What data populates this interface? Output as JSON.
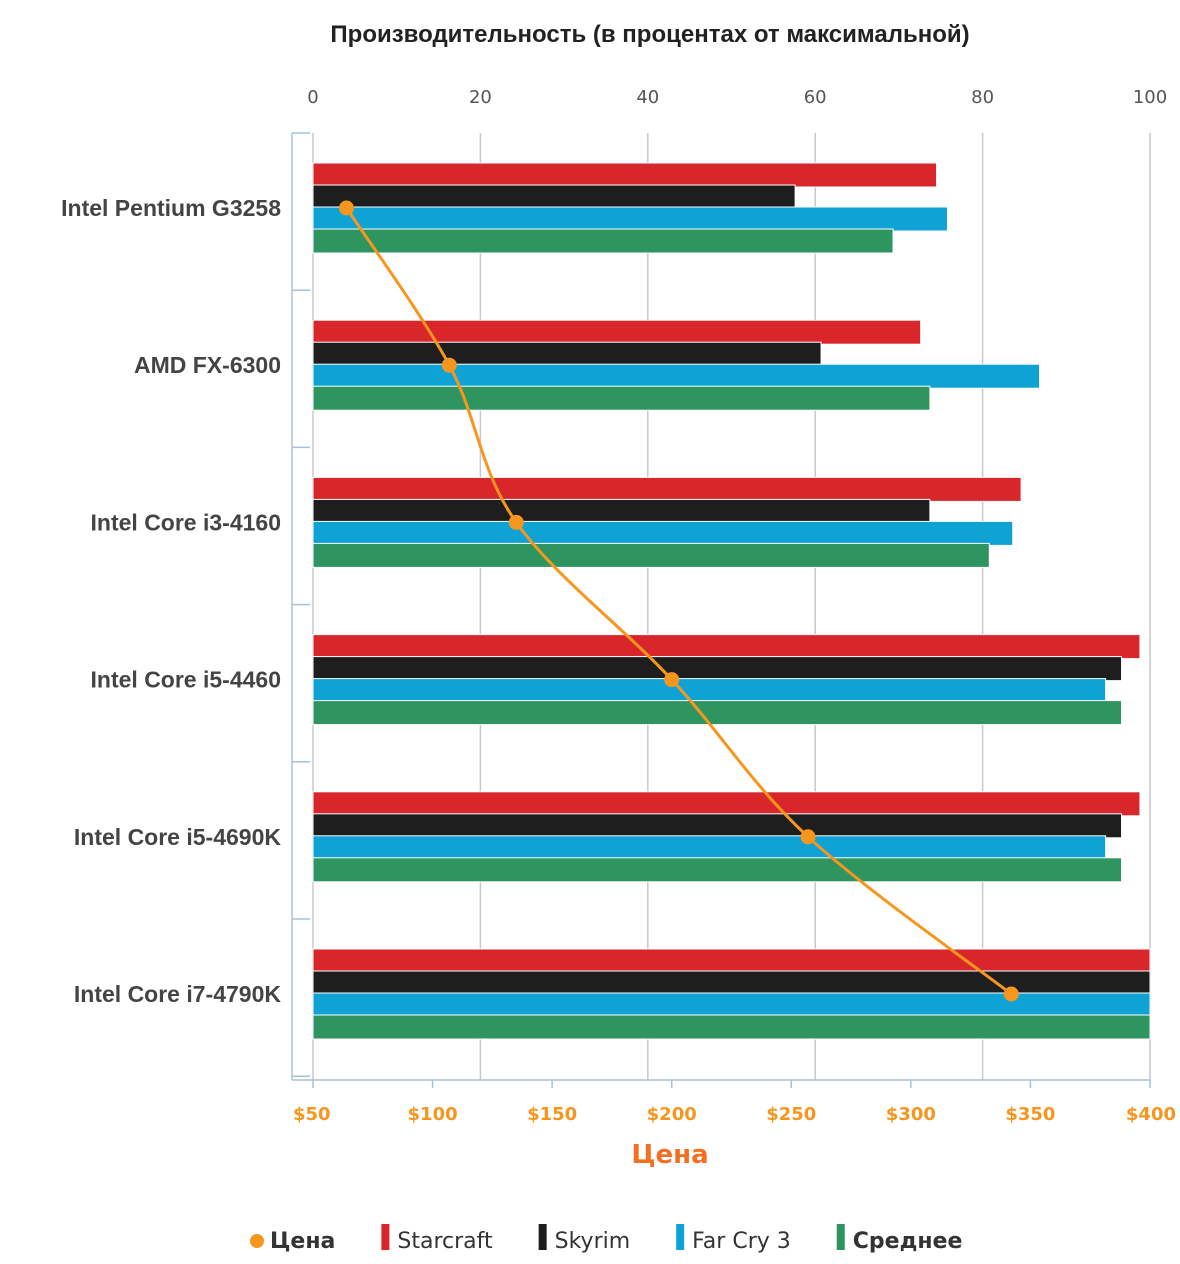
{
  "chart_data": {
    "type": "bar",
    "orientation": "horizontal",
    "title": "Производительность (в процентах от максимальной)",
    "categories": [
      "Intel Pentium G3258",
      "AMD FX-6300",
      "Intel Core i3-4160",
      "Intel Core i5-4460",
      "Intel Core i5-4690K",
      "Intel Core i7-4790K"
    ],
    "series": [
      {
        "name": "Starcraft",
        "color": "#d9262a",
        "values": [
          74.5,
          72.6,
          84.6,
          98.8,
          98.8,
          100
        ]
      },
      {
        "name": "Skyrim",
        "color": "#1e1e1e",
        "values": [
          57.6,
          60.7,
          73.7,
          96.6,
          96.6,
          100
        ]
      },
      {
        "name": "Far Cry 3",
        "color": "#0ea3d4",
        "values": [
          75.8,
          86.8,
          83.6,
          94.7,
          94.7,
          100
        ]
      },
      {
        "name": "Среднее",
        "color": "#2e9560",
        "values": [
          69.3,
          73.7,
          80.8,
          96.6,
          96.6,
          100
        ]
      }
    ],
    "price_series": {
      "name": "Цена",
      "color": "#f7961e",
      "values": [
        64,
        107,
        135,
        200,
        257,
        342
      ]
    },
    "top_axis": {
      "ticks": [
        "0",
        "20",
        "40",
        "60",
        "80",
        "100"
      ],
      "range": [
        0,
        100
      ]
    },
    "bottom_axis": {
      "title": "Цена",
      "ticks": [
        "$50",
        "$100",
        "$150",
        "$200",
        "$250",
        "$300",
        "$350",
        "$400"
      ],
      "range": [
        50,
        400
      ]
    },
    "grid": true,
    "legend": {
      "position": "bottom",
      "items": [
        {
          "name": "Цена",
          "marker": "dot",
          "color": "#f7961e",
          "bold": true
        },
        {
          "name": "Starcraft",
          "marker": "bar",
          "color": "#d9262a",
          "bold": false
        },
        {
          "name": "Skyrim",
          "marker": "bar",
          "color": "#1e1e1e",
          "bold": false
        },
        {
          "name": "Far Cry 3",
          "marker": "bar",
          "color": "#0ea3d4",
          "bold": false
        },
        {
          "name": "Среднее",
          "marker": "bar",
          "color": "#2e9560",
          "bold": true
        }
      ]
    },
    "colors": {
      "grid": "#c8c8c8",
      "axis": "#a9c0dc",
      "price_text": "#f7961e",
      "price_title": "#f36f21"
    }
  }
}
